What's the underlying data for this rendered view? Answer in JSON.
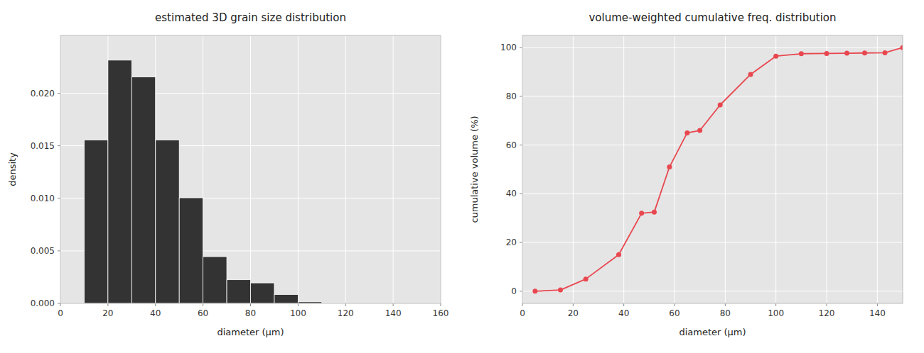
{
  "chart_data": [
    {
      "type": "histogram",
      "title": "estimated 3D grain size distribution",
      "xlabel": "diameter (μm)",
      "ylabel": "density",
      "bins": [
        10,
        20,
        30,
        40,
        50,
        60,
        70,
        80,
        90,
        100,
        110,
        120
      ],
      "values": [
        0.01555,
        0.02315,
        0.02155,
        0.01555,
        0.01005,
        0.00445,
        0.00225,
        0.00195,
        0.00085,
        0.00015,
        3e-05
      ],
      "color": "#333333",
      "xlim": [
        0,
        160
      ],
      "ylim": [
        0,
        0.0255
      ],
      "xticks": [
        0,
        20,
        40,
        60,
        80,
        100,
        120,
        140,
        160
      ],
      "yticks": [
        {
          "value": 0,
          "label": "0.000"
        },
        0.005,
        {
          "value": 0.01,
          "label": "0.010"
        },
        0.015,
        {
          "value": 0.02,
          "label": "0.020"
        }
      ],
      "grid": true
    },
    {
      "type": "line",
      "title": "volume-weighted cumulative freq. distribution",
      "xlabel": "diameter (μm)",
      "ylabel": "cumulative volume (%)",
      "x": [
        5,
        15,
        25,
        38,
        47,
        52,
        58,
        65,
        70,
        78,
        90,
        100,
        110,
        120,
        128,
        135,
        143,
        150
      ],
      "values": [
        0.0,
        0.5,
        5.0,
        15.0,
        32.0,
        32.5,
        51.0,
        65.0,
        66.0,
        76.5,
        89.0,
        96.5,
        97.5,
        97.6,
        97.7,
        97.8,
        97.9,
        100.0
      ],
      "color": "#e8474f",
      "marker": "circle",
      "xlim": [
        0,
        150
      ],
      "ylim": [
        -5,
        105
      ],
      "xticks": [
        0,
        20,
        40,
        60,
        80,
        100,
        120,
        140
      ],
      "yticks": [
        0,
        20,
        40,
        60,
        80,
        100
      ],
      "grid": true
    }
  ]
}
